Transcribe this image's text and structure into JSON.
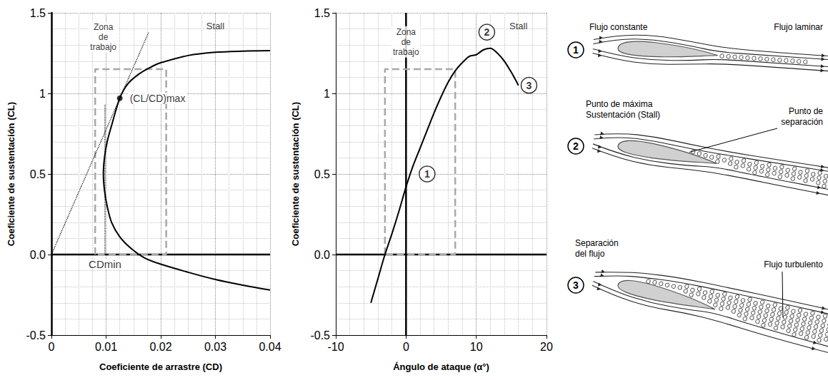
{
  "chart_data": [
    {
      "type": "line",
      "x_label": "Coeficiente de arrastre (CD)",
      "y_label": "Coeficiente de sustentación (CL)",
      "xlim": [
        0,
        0.04
      ],
      "xticks": [
        0,
        0.01,
        0.02,
        0.03,
        0.04
      ],
      "ylim": [
        -0.5,
        1.5
      ],
      "yticks": [
        -0.5,
        {
          "value": 0,
          "label": "0.0"
        },
        0.5,
        1,
        1.5
      ],
      "grid": true,
      "color": "#000000",
      "x": [
        0.04,
        0.035,
        0.03,
        0.025,
        0.02,
        0.017,
        0.0145,
        0.0125,
        0.011,
        0.0102,
        0.0097,
        0.0095,
        0.0097,
        0.0102,
        0.011,
        0.0125,
        0.014,
        0.016,
        0.018,
        0.02,
        0.025,
        0.03,
        0.035,
        0.04
      ],
      "values": [
        -0.22,
        -0.19,
        -0.155,
        -0.11,
        -0.06,
        -0.02,
        0.04,
        0.11,
        0.2,
        0.3,
        0.4,
        0.5,
        0.6,
        0.7,
        0.8,
        0.97,
        1.06,
        1.12,
        1.16,
        1.19,
        1.235,
        1.255,
        1.262,
        1.265
      ],
      "work_zone": {
        "x": [
          0.008,
          0.021
        ],
        "y": [
          0,
          1.15
        ],
        "label": "Zona de trabajo",
        "label_x": 0.0095,
        "label_y": 1.35
      },
      "tangent": {
        "x": [
          0,
          0.0178
        ],
        "y": [
          0,
          1.38
        ]
      },
      "max_ratio_point": {
        "x": 0.0125,
        "y": 0.97,
        "label": "(CL/CD)max"
      },
      "cd_min": {
        "x": 0.0098,
        "y": [
          0,
          0.93
        ],
        "label": "CDmin"
      },
      "annotations": [
        {
          "text": "Stall",
          "x": 0.03,
          "y": 1.42
        }
      ]
    },
    {
      "type": "line",
      "x_label": "Ángulo de ataque (α°)",
      "y_label": "Coeficiente de sustentación (CL)",
      "xlim": [
        -10,
        20
      ],
      "xticks": [
        -10,
        0,
        10,
        20
      ],
      "ylim": [
        -0.5,
        1.5
      ],
      "yticks": [
        -0.5,
        {
          "value": 0,
          "label": "0.0"
        },
        0.5,
        1,
        1.5
      ],
      "grid": true,
      "color": "#000000",
      "x": [
        -5,
        -4,
        -3,
        -2,
        -1,
        0,
        1,
        2,
        3,
        4,
        5,
        6,
        7,
        8,
        9,
        10,
        11,
        12,
        13,
        14,
        15,
        16
      ],
      "values": [
        -0.3,
        -0.15,
        0.0,
        0.13,
        0.27,
        0.42,
        0.55,
        0.66,
        0.77,
        0.88,
        0.98,
        1.07,
        1.14,
        1.19,
        1.23,
        1.24,
        1.27,
        1.28,
        1.25,
        1.2,
        1.13,
        1.05
      ],
      "work_zone": {
        "x": [
          -3,
          7
        ],
        "y": [
          0,
          1.15
        ],
        "label": "Zona de trabajo",
        "label_x": 0,
        "label_y": 1.32
      },
      "markers": [
        {
          "text": "1",
          "x": 3,
          "y": 0.5
        },
        {
          "text": "2",
          "x": 11.5,
          "y": 1.38
        },
        {
          "text": "3",
          "x": 17.5,
          "y": 1.05
        }
      ],
      "annotations": [
        {
          "text": "Stall",
          "x": 16,
          "y": 1.42
        }
      ]
    }
  ],
  "diagram": {
    "rows": [
      {
        "number": "1",
        "left_label": "Flujo constante",
        "right_label": "Flujo laminar"
      },
      {
        "number": "2",
        "left_label": "Punto de máxima Sustentación (Stall)",
        "right_label": "Punto de separación"
      },
      {
        "number": "3",
        "left_label": "Separación del flujo",
        "right_label": "Flujo turbulento"
      }
    ]
  }
}
